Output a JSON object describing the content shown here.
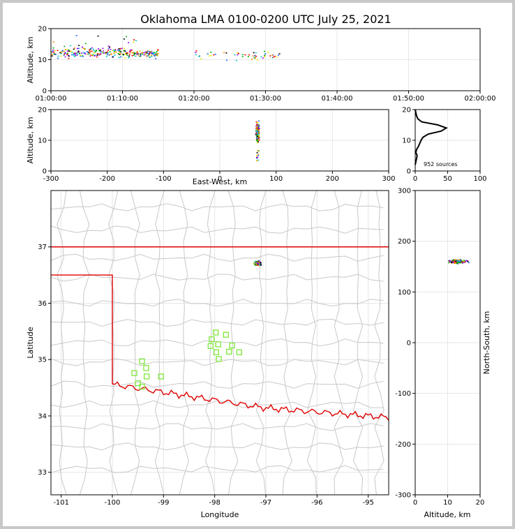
{
  "title": "Oklahoma LMA 0100-0200 UTC July 25, 2021",
  "colors": {
    "state_border": "#e00000",
    "county_lines": "#c8c8c8",
    "station_marker": "#7ee83a",
    "source_palette": [
      "#1f6fff",
      "#00c8c8",
      "#00b000",
      "#e8e800",
      "#ff8c00",
      "#ff0000",
      "#9b00ff",
      "#000000"
    ]
  },
  "chart_data": [
    {
      "panel": "time-altitude",
      "type": "scatter",
      "xlabel": "",
      "ylabel": "Altitude, km",
      "x_ticks": [
        "01:00:00",
        "01:10:00",
        "01:20:00",
        "01:30:00",
        "01:40:00",
        "01:50:00",
        "02:00:00"
      ],
      "xlim_minutes": [
        0,
        60
      ],
      "ylim": [
        0,
        20
      ],
      "y_ticks": [
        0,
        10,
        20
      ],
      "grid": true
    },
    {
      "panel": "east-west-altitude",
      "type": "scatter",
      "xlabel": "East-West, km",
      "ylabel": "Altitude, km",
      "xlim": [
        -300,
        300
      ],
      "x_ticks": [
        -300,
        -200,
        -100,
        0,
        100,
        200,
        300
      ],
      "ylim": [
        0,
        20
      ],
      "y_ticks": [
        0,
        10,
        20
      ],
      "grid": true
    },
    {
      "panel": "altitude-histogram",
      "type": "line",
      "annotation": "952 sources",
      "xlim": [
        0,
        100
      ],
      "x_ticks": [
        0,
        50,
        100
      ],
      "ylim": [
        0,
        20
      ],
      "y_ticks": [
        0,
        10,
        20
      ],
      "profile": [
        [
          0,
          2
        ],
        [
          1,
          3
        ],
        [
          2,
          4
        ],
        [
          3,
          5
        ],
        [
          1,
          6
        ],
        [
          2,
          7
        ],
        [
          5,
          8
        ],
        [
          7,
          9
        ],
        [
          9,
          10
        ],
        [
          12,
          11
        ],
        [
          20,
          12
        ],
        [
          40,
          13
        ],
        [
          48,
          14
        ],
        [
          35,
          15
        ],
        [
          10,
          16
        ],
        [
          4,
          17
        ],
        [
          2,
          18
        ],
        [
          1,
          19
        ],
        [
          0,
          20
        ]
      ]
    },
    {
      "panel": "plan-view",
      "type": "scatter",
      "xlabel": "Longitude",
      "ylabel": "Latitude",
      "xlim": [
        -101.2,
        -94.6
      ],
      "x_ticks": [
        -101,
        -100,
        -99,
        -98,
        -97,
        -96,
        -95
      ],
      "ylim": [
        32.6,
        38.0
      ],
      "y_ticks": [
        33,
        34,
        35,
        36,
        37
      ],
      "grid": true,
      "sources_center": {
        "lon": -97.17,
        "lat": 36.72
      },
      "stations": [
        {
          "lon": -97.98,
          "lat": 35.48
        },
        {
          "lon": -97.78,
          "lat": 35.44
        },
        {
          "lon": -98.06,
          "lat": 35.36
        },
        {
          "lon": -97.93,
          "lat": 35.27
        },
        {
          "lon": -98.08,
          "lat": 35.24
        },
        {
          "lon": -97.66,
          "lat": 35.25
        },
        {
          "lon": -97.97,
          "lat": 35.13
        },
        {
          "lon": -97.72,
          "lat": 35.14
        },
        {
          "lon": -97.52,
          "lat": 35.13
        },
        {
          "lon": -97.92,
          "lat": 35.01
        },
        {
          "lon": -99.42,
          "lat": 34.97
        },
        {
          "lon": -99.34,
          "lat": 34.85
        },
        {
          "lon": -99.57,
          "lat": 34.76
        },
        {
          "lon": -99.33,
          "lat": 34.7
        },
        {
          "lon": -99.05,
          "lat": 34.7
        },
        {
          "lon": -99.5,
          "lat": 34.58
        },
        {
          "lon": -99.42,
          "lat": 34.52
        }
      ]
    },
    {
      "panel": "altitude-north-south",
      "type": "scatter",
      "xlabel": "Altitude, km",
      "ylabel": "North-South, km",
      "xlim": [
        0,
        20
      ],
      "x_ticks": [
        0,
        10,
        20
      ],
      "ylim": [
        -300,
        300
      ],
      "y_ticks": [
        -300,
        -200,
        -100,
        0,
        100,
        200,
        300
      ],
      "grid": true
    }
  ]
}
